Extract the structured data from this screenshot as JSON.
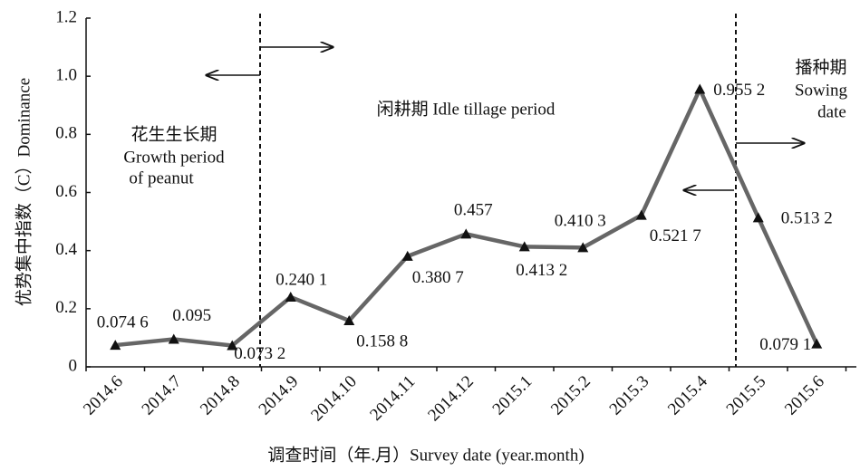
{
  "chart_data": {
    "type": "line",
    "ylabel": "优势集中指数（C）Dominance",
    "xlabel": "调查时间（年.月）Survey date (year.month)",
    "categories": [
      "2014.6",
      "2014.7",
      "2014.8",
      "2014.9",
      "2014.10",
      "2014.11",
      "2014.12",
      "2015.1",
      "2015.2",
      "2015.3",
      "2015.4",
      "2015.5",
      "2015.6"
    ],
    "values": [
      0.0746,
      0.095,
      0.0732,
      0.2401,
      0.1588,
      0.3807,
      0.457,
      0.4132,
      0.4103,
      0.5217,
      0.9552,
      0.5132,
      0.0791
    ],
    "value_labels": [
      "0.074 6",
      "0.095",
      "0.073 2",
      "0.240 1",
      "0.158 8",
      "0.380 7",
      "0.457",
      "0.413 2",
      "0.410 3",
      "0.521 7",
      "0.955 2",
      "0.513 2",
      "0.079 1"
    ],
    "color": "#666666",
    "marker_color": "#111111",
    "ylim": [
      0,
      1.2
    ],
    "yticks": [
      0,
      0.2,
      0.4,
      0.6,
      0.8,
      {
        "value": 1,
        "label": "1.0"
      },
      1.2
    ],
    "annotations": {
      "growth": [
        "花生生长期",
        "Growth period",
        "of peanut"
      ],
      "idle": "闲耕期 Idle tillage period",
      "sowing": [
        "播种期",
        "Sowing",
        "date"
      ]
    }
  }
}
